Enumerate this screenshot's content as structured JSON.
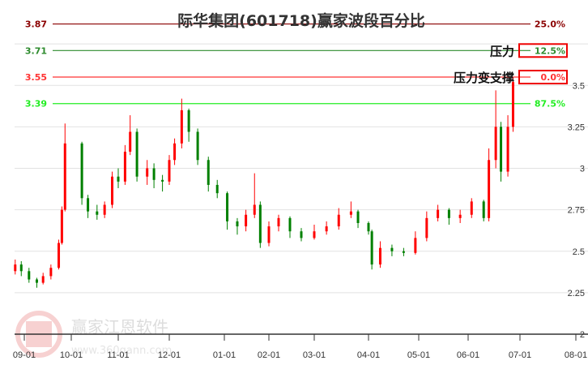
{
  "chart_data": {
    "type": "candlestick",
    "title": "际华集团(601718)赢家波段百分比",
    "y_ticks": [
      "2",
      "2.25",
      "2.5",
      "2.75",
      "3",
      "3.25",
      "3.5"
    ],
    "y_tick_values": [
      2,
      2.25,
      2.5,
      2.75,
      3,
      3.25,
      3.5
    ],
    "grid_values": [
      2.25,
      2.5,
      2.75,
      3,
      3.25,
      3.5,
      3.75
    ],
    "ylim": [
      2,
      3.95
    ],
    "x_ticks": [
      "09-01",
      "10-01",
      "11-01",
      "12-01",
      "01-01",
      "02-01",
      "03-01",
      "04-01",
      "05-01",
      "06-01",
      "07-01",
      "08-01"
    ],
    "grid": true,
    "colors": {
      "up": "#ff0000",
      "down": "#008000"
    },
    "levels": [
      {
        "price": "3.87",
        "value": 3.87,
        "pct": "25.0%",
        "color": "#8b0000",
        "boxed": false
      },
      {
        "price": "3.71",
        "value": 3.71,
        "pct": "12.5%",
        "color": "#2e8b2e",
        "boxed": true
      },
      {
        "price": "3.55",
        "value": 3.55,
        "pct": "0.0%",
        "color": "#ff3333",
        "boxed": true
      },
      {
        "price": "3.39",
        "value": 3.39,
        "pct": "87.5%",
        "color": "#22ee22",
        "boxed": false
      }
    ],
    "annotations": [
      {
        "text": "压力",
        "level": 3.71
      },
      {
        "text": "压力变支撑",
        "level": 3.55
      }
    ],
    "candles": [
      [
        "08-26",
        2.38,
        2.42,
        2.45,
        2.36
      ],
      [
        "08-30",
        2.42,
        2.38,
        2.44,
        2.35
      ],
      [
        "09-04",
        2.38,
        2.33,
        2.4,
        2.31
      ],
      [
        "09-09",
        2.33,
        2.31,
        2.34,
        2.28
      ],
      [
        "09-13",
        2.31,
        2.35,
        2.37,
        2.3
      ],
      [
        "09-18",
        2.35,
        2.4,
        2.42,
        2.33
      ],
      [
        "09-23",
        2.4,
        2.55,
        2.57,
        2.39
      ],
      [
        "09-25",
        2.55,
        2.75,
        2.77,
        2.54
      ],
      [
        "09-27",
        2.75,
        3.15,
        3.27,
        2.74
      ],
      [
        "10-08",
        3.15,
        2.82,
        3.16,
        2.78
      ],
      [
        "10-12",
        2.82,
        2.74,
        2.84,
        2.7
      ],
      [
        "10-18",
        2.74,
        2.72,
        2.78,
        2.69
      ],
      [
        "10-23",
        2.72,
        2.78,
        2.8,
        2.7
      ],
      [
        "10-28",
        2.78,
        2.95,
        2.98,
        2.76
      ],
      [
        "11-01",
        2.95,
        2.92,
        3.0,
        2.88
      ],
      [
        "11-05",
        2.92,
        3.1,
        3.14,
        2.9
      ],
      [
        "11-08",
        3.1,
        3.22,
        3.32,
        3.08
      ],
      [
        "11-12",
        3.22,
        2.95,
        3.24,
        2.92
      ],
      [
        "11-18",
        2.95,
        3.0,
        3.05,
        2.9
      ],
      [
        "11-22",
        3.0,
        2.93,
        3.03,
        2.88
      ],
      [
        "11-27",
        2.93,
        2.92,
        2.96,
        2.86
      ],
      [
        "12-01",
        2.92,
        3.05,
        3.08,
        2.9
      ],
      [
        "12-04",
        3.05,
        3.15,
        3.18,
        3.02
      ],
      [
        "12-08",
        3.15,
        3.35,
        3.42,
        3.12
      ],
      [
        "12-12",
        3.35,
        3.22,
        3.36,
        3.16
      ],
      [
        "12-17",
        3.22,
        3.05,
        3.24,
        3.02
      ],
      [
        "12-23",
        3.05,
        2.9,
        3.07,
        2.86
      ],
      [
        "12-28",
        2.9,
        2.85,
        2.93,
        2.82
      ],
      [
        "01-03",
        2.85,
        2.68,
        2.86,
        2.63
      ],
      [
        "01-10",
        2.68,
        2.65,
        2.7,
        2.6
      ],
      [
        "01-16",
        2.65,
        2.72,
        2.75,
        2.62
      ],
      [
        "01-22",
        2.72,
        2.78,
        2.97,
        2.7
      ],
      [
        "01-26",
        2.78,
        2.55,
        2.8,
        2.52
      ],
      [
        "02-01",
        2.55,
        2.65,
        2.68,
        2.53
      ],
      [
        "02-07",
        2.65,
        2.7,
        2.72,
        2.62
      ],
      [
        "02-14",
        2.7,
        2.62,
        2.71,
        2.58
      ],
      [
        "02-21",
        2.62,
        2.58,
        2.64,
        2.56
      ],
      [
        "03-01",
        2.58,
        2.62,
        2.66,
        2.57
      ],
      [
        "03-08",
        2.62,
        2.65,
        2.68,
        2.6
      ],
      [
        "03-15",
        2.65,
        2.72,
        2.76,
        2.63
      ],
      [
        "03-22",
        2.72,
        2.74,
        2.8,
        2.7
      ],
      [
        "03-26",
        2.74,
        2.67,
        2.75,
        2.64
      ],
      [
        "04-01",
        2.67,
        2.62,
        2.68,
        2.6
      ],
      [
        "04-03",
        2.62,
        2.42,
        2.63,
        2.39
      ],
      [
        "04-08",
        2.42,
        2.52,
        2.56,
        2.4
      ],
      [
        "04-15",
        2.52,
        2.5,
        2.54,
        2.47
      ],
      [
        "04-22",
        2.5,
        2.49,
        2.52,
        2.47
      ],
      [
        "04-29",
        2.49,
        2.58,
        2.62,
        2.48
      ],
      [
        "05-06",
        2.58,
        2.7,
        2.74,
        2.56
      ],
      [
        "05-13",
        2.7,
        2.75,
        2.78,
        2.68
      ],
      [
        "05-20",
        2.75,
        2.7,
        2.76,
        2.66
      ],
      [
        "05-27",
        2.7,
        2.72,
        2.75,
        2.67
      ],
      [
        "06-03",
        2.72,
        2.8,
        2.82,
        2.7
      ],
      [
        "06-10",
        2.8,
        2.7,
        2.81,
        2.68
      ],
      [
        "06-13",
        2.7,
        3.05,
        3.12,
        2.68
      ],
      [
        "06-17",
        3.05,
        3.25,
        3.47,
        3.0
      ],
      [
        "06-20",
        3.25,
        2.98,
        3.28,
        2.92
      ],
      [
        "06-24",
        2.98,
        3.25,
        3.32,
        2.95
      ],
      [
        "06-27",
        3.25,
        3.52,
        3.55,
        3.22
      ]
    ],
    "watermark": {
      "name": "赢家江恩软件",
      "url": "www.360gann.com",
      "seal": "江赢恩家"
    }
  }
}
